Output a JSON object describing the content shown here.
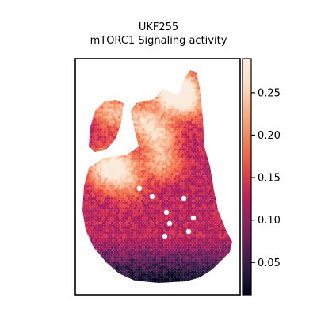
{
  "chart_data": {
    "type": "heatmap",
    "title_lines": [
      "UKF255",
      "mTORC1 Signaling activity"
    ],
    "colorbar": {
      "min": 0.012,
      "max": 0.29,
      "ticks": [
        0.05,
        0.1,
        0.15,
        0.2,
        0.25
      ],
      "tick_labels": [
        "0.05",
        "0.10",
        "0.15",
        "0.20",
        "0.25"
      ],
      "colors": [
        "#03051a",
        "#2b1a3f",
        "#5a1e55",
        "#8a2060",
        "#b81c5b",
        "#df3b48",
        "#f06a47",
        "#f5936a",
        "#f8bb98",
        "#fbe1c9",
        "#faebdd"
      ]
    },
    "grid": false,
    "legend": "colorbar-right"
  }
}
